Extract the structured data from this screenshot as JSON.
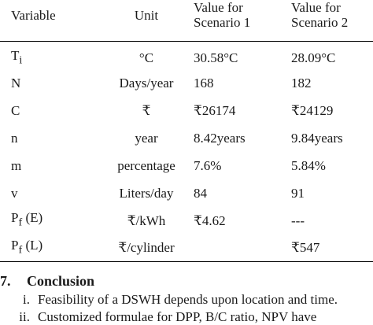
{
  "table": {
    "headers": {
      "variable": "Variable",
      "unit": "Unit",
      "scenario1": [
        "Value for",
        "Scenario 1"
      ],
      "scenario2": [
        "Value for",
        "Scenario 2"
      ]
    },
    "rows": [
      {
        "var_main": "T",
        "var_sub": "i",
        "unit": "°C",
        "s1": "30.58°C",
        "s2": "28.09°C"
      },
      {
        "var_main": "N",
        "var_sub": "",
        "unit": "Days/year",
        "s1": "168",
        "s2": "182"
      },
      {
        "var_main": "C",
        "var_sub": "",
        "unit": "₹",
        "s1": "₹26174",
        "s2": "₹24129"
      },
      {
        "var_main": "n",
        "var_sub": "",
        "unit": "year",
        "s1": "8.42years",
        "s2": "9.84years"
      },
      {
        "var_main": "m",
        "var_sub": "",
        "unit": "percentage",
        "s1": "7.6%",
        "s2": "5.84%"
      },
      {
        "var_main": "v",
        "var_sub": "",
        "unit": "Liters/day",
        "s1": "84",
        "s2": "91"
      },
      {
        "var_main": "P",
        "var_sub": "f",
        "var_suffix": " (E)",
        "unit": "₹/kWh",
        "s1": "₹4.62",
        "s2": "---"
      },
      {
        "var_main": "P",
        "var_sub": "f",
        "var_suffix": " (L)",
        "unit": "₹/cylinder",
        "s1": "",
        "s2": "₹547"
      }
    ]
  },
  "section": {
    "number": "7.",
    "title": "Conclusion"
  },
  "list": [
    {
      "marker": "i.",
      "text": "Feasibility of a DSWH depends upon location and time."
    },
    {
      "marker": "ii.",
      "text": "Customized formulae for DPP, B/C ratio, NPV have"
    }
  ]
}
